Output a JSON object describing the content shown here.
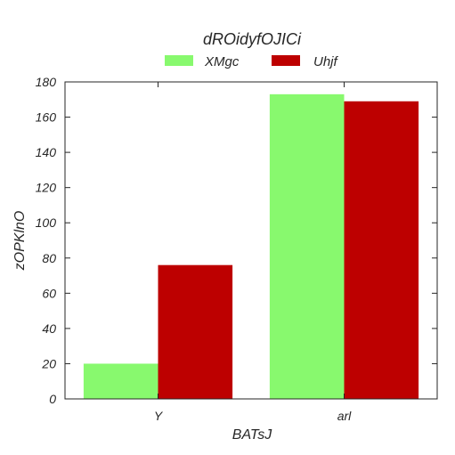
{
  "chart_data": {
    "type": "bar",
    "title": "dROidyfOJICi",
    "xlabel": "BATsJ",
    "ylabel": "zOPKlnO",
    "categories": [
      "Y",
      "arl"
    ],
    "series": [
      {
        "name": "XMgc",
        "values": [
          20,
          173
        ],
        "color": "#88f96e"
      },
      {
        "name": "Uhjf",
        "values": [
          76,
          169
        ],
        "color": "#bd0000"
      }
    ],
    "ylim": [
      0,
      180
    ],
    "yticks": [
      0,
      20,
      40,
      60,
      80,
      100,
      120,
      140,
      160,
      180
    ],
    "grid": false,
    "legend_position": "top-center"
  }
}
